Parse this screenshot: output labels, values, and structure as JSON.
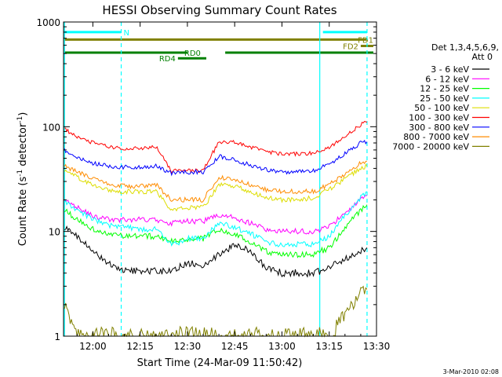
{
  "chart_data": {
    "type": "line",
    "title": "HESSI Observing Summary Count Rates",
    "xlabel": "Start Time (24-Mar-09 11:50:42)",
    "ylabel_main": "Count Rate (s",
    "ylabel_sup1": "-1",
    "ylabel_mid": " detector",
    "ylabel_sup2": "-1",
    "ylabel_end": ")",
    "ylim": [
      1,
      1000
    ],
    "yscale": "log",
    "xlim": [
      "11:50:42",
      "13:30"
    ],
    "x_ticks": [
      "12:00",
      "12:15",
      "12:30",
      "12:45",
      "13:00",
      "13:15",
      "13:30"
    ],
    "y_ticks": [
      "1",
      "10",
      "100",
      "1000"
    ],
    "timestamp": "3-Mar-2010 02:08",
    "legend": {
      "header1": "Det 1,3,4,5,6,9,",
      "header2": "Att 0",
      "placement": "right"
    },
    "x": [
      "11:51",
      "11:55",
      "12:00",
      "12:05",
      "12:10",
      "12:15",
      "12:20",
      "12:25",
      "12:30",
      "12:35",
      "12:40",
      "12:45",
      "12:50",
      "12:55",
      "13:00",
      "13:05",
      "13:10",
      "13:15",
      "13:20",
      "13:25",
      "13:27"
    ],
    "series": [
      {
        "name": "3 - 6 keV",
        "color": "#000000",
        "values": [
          11,
          9,
          6.5,
          5,
          4.2,
          4.2,
          4.2,
          4.2,
          5,
          4.8,
          6,
          7.5,
          6.5,
          4.5,
          4,
          4,
          4,
          4.5,
          5.5,
          6.5,
          7
        ]
      },
      {
        "name": "6 - 12 keV",
        "color": "#ff00ff",
        "values": [
          20,
          17,
          14,
          13,
          13,
          13,
          13,
          12,
          12.5,
          12.5,
          14.5,
          13.5,
          12,
          10.5,
          10,
          10,
          10,
          11,
          15,
          20,
          22
        ]
      },
      {
        "name": "12 - 25 keV",
        "color": "#00ff00",
        "values": [
          16,
          13,
          10.5,
          9.5,
          9,
          9,
          9,
          8,
          8.5,
          8.5,
          10.5,
          9.5,
          8,
          6.5,
          6,
          6,
          6,
          7,
          11,
          16,
          18
        ]
      },
      {
        "name": "25 - 50 keV",
        "color": "#00ffff",
        "values": [
          19,
          16,
          13,
          11.5,
          11,
          10.5,
          10.5,
          7.5,
          8.5,
          8.5,
          12,
          11,
          9.5,
          8,
          7.5,
          7.5,
          7.5,
          9,
          14,
          21,
          24
        ]
      },
      {
        "name": "50 - 100 keV",
        "color": "#dddd00",
        "values": [
          38,
          33,
          28,
          25,
          24,
          24,
          24,
          16,
          17,
          17,
          28,
          27,
          24,
          21,
          20,
          20,
          21,
          25,
          32,
          40,
          42
        ]
      },
      {
        "name": "100 - 300 keV",
        "color": "#ff0000",
        "values": [
          95,
          80,
          70,
          64,
          62,
          62,
          64,
          38,
          38,
          38,
          72,
          72,
          64,
          58,
          55,
          55,
          56,
          64,
          80,
          105,
          110
        ]
      },
      {
        "name": "300 - 800 keV",
        "color": "#0000ff",
        "values": [
          60,
          50,
          45,
          42,
          41,
          41,
          42,
          36,
          37,
          37,
          52,
          48,
          43,
          39,
          37,
          37,
          38,
          44,
          55,
          70,
          72
        ]
      },
      {
        "name": "800 - 7000 keV",
        "color": "#ff8c00",
        "values": [
          42,
          37,
          32,
          28,
          27,
          27,
          28,
          20,
          20,
          20,
          33,
          31,
          28,
          25,
          24,
          24,
          24,
          28,
          35,
          45,
          47
        ]
      },
      {
        "name": "7000 - 20000 keV",
        "color": "#808000",
        "values": [
          2,
          1,
          1,
          1,
          1,
          1,
          1,
          1,
          1,
          1,
          1,
          1,
          1,
          1,
          1,
          1,
          1,
          1,
          1.5,
          2.7,
          2.8
        ]
      }
    ],
    "flags": [
      {
        "label": "N",
        "color": "#00ffff",
        "segments": [
          [
            "11:51",
            "12:09"
          ],
          [
            "13:13",
            "13:27"
          ]
        ],
        "level": 800
      },
      {
        "label": "FD1",
        "color": "#808000",
        "segments": [
          [
            "11:51",
            "13:27"
          ]
        ],
        "level": 680
      },
      {
        "label": "FD2",
        "color": "#808000",
        "segments": [
          [
            "13:25",
            "13:29"
          ]
        ],
        "level": 590
      },
      {
        "label": "RD0",
        "color": "#008000",
        "segments": [
          [
            "11:51",
            "12:30"
          ],
          [
            "12:42",
            "13:29"
          ]
        ],
        "level": 510
      },
      {
        "label": "RD4",
        "color": "#008000",
        "segments": [
          [
            "12:27",
            "12:36"
          ]
        ],
        "level": 450
      }
    ],
    "vlines": [
      {
        "time": "11:51",
        "color": "#00ffff",
        "style": "solid"
      },
      {
        "time": "12:09",
        "color": "#00ffff",
        "style": "dashed"
      },
      {
        "time": "13:12",
        "color": "#00ffff",
        "style": "solid"
      },
      {
        "time": "13:27",
        "color": "#00ffff",
        "style": "dashed"
      }
    ]
  }
}
